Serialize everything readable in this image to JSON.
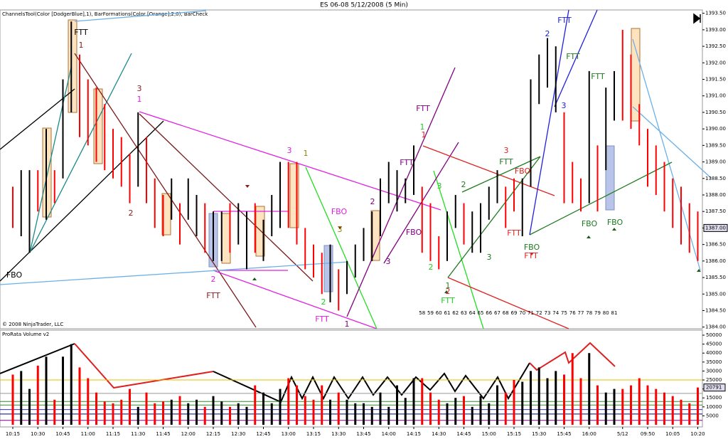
{
  "window_title": "ES 06-08  5/12/2008 (5 Min)",
  "chart_data": [
    {
      "type": "range",
      "title": "ChannelsTool(Color [DodgerBlue],1), BarFormations(Color [Orange],2,0), BarCheck",
      "copyright": "© 2008 NinjaTrader, LLC",
      "categories": [
        "10:15",
        null,
        null,
        "10:30",
        null,
        null,
        "10:45",
        null,
        null,
        "11:00",
        null,
        null,
        "11:15",
        null,
        null,
        "11:30",
        null,
        null,
        "11:45",
        null,
        null,
        "12:00",
        null,
        null,
        "12:15",
        null,
        null,
        "12:30",
        null,
        null,
        "12:45",
        null,
        null,
        "13:00",
        null,
        null,
        "13:15",
        null,
        null,
        "13:30",
        null,
        null,
        "13:45",
        null,
        null,
        "14:00",
        null,
        null,
        "14:15",
        null,
        null,
        "14:30",
        null,
        null,
        "14:45",
        null,
        null,
        "15:00",
        null,
        null,
        "15:15",
        null,
        null,
        "15:30",
        null,
        null,
        "15:45",
        null,
        null,
        "16:00",
        null,
        null,
        null,
        "5/12",
        null,
        null,
        "09:50",
        null,
        null,
        "10:05",
        null,
        null,
        "10:20"
      ],
      "highs": [
        1388.25,
        1388.75,
        1388.75,
        1388.75,
        1390.0,
        1388.75,
        1391.5,
        1393.25,
        1392.25,
        1391.5,
        1391.25,
        1390.75,
        1390.0,
        1389.75,
        1389.25,
        1390.5,
        1389.75,
        1388.5,
        1388.0,
        1388.5,
        1387.75,
        1388.5,
        1388.0,
        1387.75,
        1387.5,
        1387.5,
        1387.75,
        1387.75,
        1387.5,
        1387.75,
        1387.25,
        1388.0,
        1389.0,
        1389.0,
        1389.0,
        1387.0,
        1386.5,
        1386.25,
        1386.5,
        1385.75,
        1386.0,
        1386.5,
        1387.0,
        1387.5,
        1388.5,
        1389.0,
        1388.75,
        1388.5,
        1389.5,
        1388.25,
        1387.75,
        1386.75,
        1387.5,
        1388.0,
        1387.75,
        1387.5,
        1387.75,
        1388.25,
        1388.75,
        1388.25,
        1388.5,
        1388.5,
        1391.5,
        1392.25,
        1392.75,
        1392.5,
        1390.5,
        1389.0,
        1388.5,
        1391.75,
        1389.5,
        1391.25,
        1391.75,
        1393.0,
        1392.25,
        1390.75,
        1390.0,
        1389.5,
        1389.0,
        1388.5,
        1388.25,
        1387.75,
        1387.5
      ],
      "lows": [
        1387.0,
        1386.75,
        1386.25,
        1387.5,
        1387.25,
        1387.75,
        1388.5,
        1390.5,
        1389.75,
        1389.5,
        1389.0,
        1388.75,
        1388.5,
        1388.25,
        1387.75,
        1388.25,
        1387.75,
        1387.0,
        1386.75,
        1387.25,
        1386.5,
        1387.25,
        1386.75,
        1386.25,
        1386.0,
        1386.0,
        1386.25,
        1386.5,
        1385.75,
        1386.25,
        1386.0,
        1386.75,
        1387.0,
        1387.0,
        1386.5,
        1385.75,
        1385.5,
        1385.0,
        1384.75,
        1384.5,
        1385.0,
        1385.5,
        1386.0,
        1386.0,
        1386.75,
        1387.75,
        1387.5,
        1387.75,
        1388.0,
        1386.25,
        1386.0,
        1385.75,
        1386.0,
        1387.0,
        1386.5,
        1386.25,
        1386.25,
        1387.25,
        1387.75,
        1387.0,
        1387.5,
        1386.75,
        1388.25,
        1390.75,
        1391.25,
        1390.5,
        1387.75,
        1387.75,
        1387.5,
        1387.75,
        1387.5,
        1388.75,
        1390.25,
        1390.25,
        1390.0,
        1389.5,
        1388.25,
        1388.0,
        1387.5,
        1387.0,
        1386.5,
        1386.25,
        1386.0
      ],
      "colors": [
        "red",
        "black",
        "black",
        "red",
        "black",
        "red",
        "black",
        "black",
        "red",
        "red",
        "red",
        "red",
        "red",
        "red",
        "red",
        "black",
        "red",
        "red",
        "red",
        "black",
        "red",
        "black",
        "black",
        "red",
        "black",
        "black",
        "red",
        "black",
        "black",
        "red",
        "black",
        "black",
        "black",
        "red",
        "red",
        "red",
        "red",
        "red",
        "black",
        "red",
        "black",
        "black",
        "black",
        "black",
        "black",
        "black",
        "black",
        "black",
        "black",
        "red",
        "red",
        "red",
        "black",
        "black",
        "red",
        "black",
        "black",
        "black",
        "black",
        "red",
        "red",
        "black",
        "black",
        "black",
        "black",
        "black",
        "red",
        "red",
        "red",
        "black",
        "red",
        "black",
        "black",
        "red",
        "red",
        "red",
        "red",
        "red",
        "red",
        "red",
        "red",
        "red",
        "red"
      ],
      "ylim": [
        1383.95,
        1393.6
      ],
      "yticks": [
        {
          "value": 1384,
          "label": "1384.00"
        },
        {
          "value": 1384.5,
          "label": "1384.50"
        },
        {
          "value": 1385,
          "label": "1385.00"
        },
        {
          "value": 1385.5,
          "label": "1385.50"
        },
        {
          "value": 1386,
          "label": "1386.00"
        },
        {
          "value": 1386.5,
          "label": "1386.50"
        },
        {
          "value": 1387,
          "label": "1387.00"
        },
        {
          "value": 1387.5,
          "label": "1387.50"
        },
        {
          "value": 1388,
          "label": "1388.00"
        },
        {
          "value": 1388.5,
          "label": "1388.50"
        },
        {
          "value": 1389,
          "label": "1389.00"
        },
        {
          "value": 1389.5,
          "label": "1389.50"
        },
        {
          "value": 1390,
          "label": "1390.00"
        },
        {
          "value": 1390.5,
          "label": "1390.50"
        },
        {
          "value": 1391,
          "label": "1391.00"
        },
        {
          "value": 1391.5,
          "label": "1391.50"
        },
        {
          "value": 1392,
          "label": "1392.00"
        },
        {
          "value": 1392.5,
          "label": "1392.50"
        },
        {
          "value": 1393,
          "label": "1393.00"
        },
        {
          "value": 1393.5,
          "label": "1393.50"
        }
      ],
      "last_price": {
        "value": 1387,
        "label": "1387.00"
      },
      "annotations": [
        {
          "text": "FTT",
          "color": "#000000"
        },
        {
          "text": "1",
          "color": "#8b1a1a"
        },
        {
          "text": "3",
          "color": "#8b1a1a"
        },
        {
          "text": "1",
          "color": "#e020e0"
        },
        {
          "text": "2",
          "color": "#8b1a1a"
        },
        {
          "text": "FBO",
          "color": "#000000"
        },
        {
          "text": "2",
          "color": "#e020e0"
        },
        {
          "text": "FTT",
          "color": "#8b1a1a"
        },
        {
          "text": "3",
          "color": "#e020e0"
        },
        {
          "text": "1",
          "color": "#8a8a00"
        },
        {
          "text": "FBO",
          "color": "#e020e0"
        },
        {
          "text": "3",
          "color": "#8a8a00"
        },
        {
          "text": "2",
          "color": "#22cc22"
        },
        {
          "text": "FTT",
          "color": "#e020e0"
        },
        {
          "text": "1",
          "color": "#800080"
        },
        {
          "text": "2",
          "color": "#800080"
        },
        {
          "text": "3",
          "color": "#800080"
        },
        {
          "text": "FBO",
          "color": "#800080"
        },
        {
          "text": "FTT",
          "color": "#800080"
        },
        {
          "text": "FTT",
          "color": "#800080"
        },
        {
          "text": "1",
          "color": "#22cc22"
        },
        {
          "text": "1",
          "color": "#e02020"
        },
        {
          "text": "3",
          "color": "#22cc22"
        },
        {
          "text": "2",
          "color": "#22cc22"
        },
        {
          "text": "1",
          "color": "#228b22"
        },
        {
          "text": "2",
          "color": "#e02020"
        },
        {
          "text": "FTT",
          "color": "#22cc22"
        },
        {
          "text": "2",
          "color": "#1f7a1f"
        },
        {
          "text": "3",
          "color": "#1f7a1f"
        },
        {
          "text": "3",
          "color": "#e02020"
        },
        {
          "text": "FTT",
          "color": "#1f7a1f"
        },
        {
          "text": "FBO",
          "color": "#e02020"
        },
        {
          "text": "FTT",
          "color": "#e02020"
        },
        {
          "text": "FBO",
          "color": "#1f7a1f"
        },
        {
          "text": "FTT",
          "color": "#e02020"
        },
        {
          "text": "2",
          "color": "#2020e0"
        },
        {
          "text": "FTT",
          "color": "#2020e0"
        },
        {
          "text": "FTT",
          "color": "#1f7a1f"
        },
        {
          "text": "3",
          "color": "#2020e0"
        },
        {
          "text": "FTT",
          "color": "#1f7a1f"
        },
        {
          "text": "FBO",
          "color": "#1f7a1f"
        },
        {
          "text": "FBO",
          "color": "#1f7a1f"
        }
      ],
      "bar_numbers": [
        58,
        59,
        60,
        61,
        62,
        63,
        64,
        65,
        66,
        67,
        68,
        69,
        70,
        71,
        72,
        73,
        74,
        75,
        76,
        77,
        78,
        79,
        80,
        81
      ]
    },
    {
      "type": "bar",
      "title": "ProRata Volume v2",
      "values": [
        28000,
        30000,
        20000,
        33000,
        38000,
        14000,
        38000,
        45000,
        32000,
        26000,
        18000,
        13000,
        12000,
        14000,
        20000,
        10000,
        18000,
        12000,
        13000,
        14000,
        16000,
        12000,
        14000,
        10000,
        16000,
        13000,
        10000,
        12000,
        10000,
        22000,
        18000,
        12000,
        20000,
        26000,
        22000,
        16000,
        14000,
        22000,
        14000,
        18000,
        14000,
        12000,
        12000,
        10000,
        18000,
        10000,
        22000,
        15000,
        26000,
        26000,
        18000,
        14000,
        12000,
        15000,
        16000,
        10000,
        16000,
        12000,
        22000,
        18000,
        25000,
        24000,
        30000,
        32000,
        26000,
        30000,
        28000,
        40000,
        26000,
        40000,
        22000,
        18000,
        20000,
        20000,
        22000,
        26000,
        22000,
        20000,
        18000,
        16000,
        14000,
        12000,
        20791
      ],
      "ylim": [
        0,
        52000
      ],
      "yticks": [
        5000,
        10000,
        15000,
        20000,
        25000,
        30000,
        35000,
        40000,
        45000,
        50000
      ],
      "levels": [
        {
          "value": 25000,
          "color": "#e0c000"
        },
        {
          "value": 17500,
          "color": "#999999"
        },
        {
          "value": 13000,
          "color": "#2e8b2e"
        },
        {
          "value": 11000,
          "color": "#2e8b2e"
        },
        {
          "value": 8500,
          "color": "#3030d0"
        },
        {
          "value": 6000,
          "color": "#000080"
        },
        {
          "value": 2500,
          "color": "#800080"
        }
      ],
      "last_value": 20791
    }
  ]
}
